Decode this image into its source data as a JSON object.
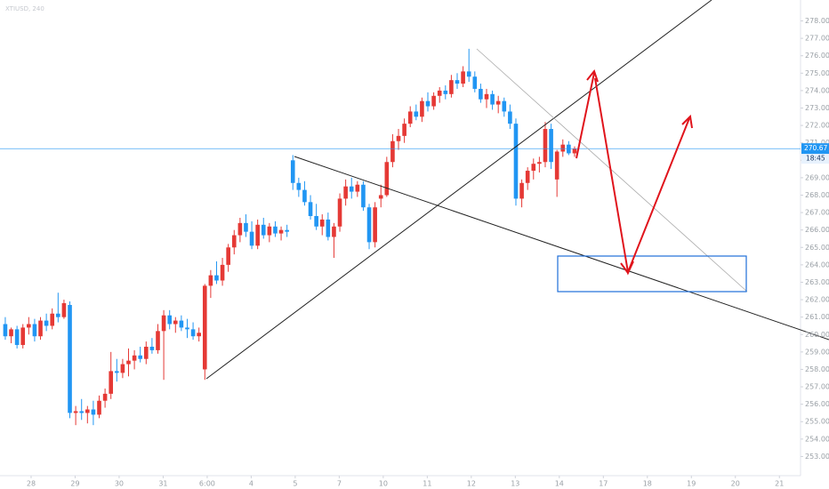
{
  "chart_data": {
    "type": "candlestick",
    "title": "XTIUSD, 240",
    "up_color": "#e53935",
    "down_color": "#2196f3",
    "grid": false,
    "ohlc": [
      [
        260.6,
        261.0,
        259.7,
        259.9
      ],
      [
        259.9,
        260.4,
        259.5,
        260.3
      ],
      [
        260.3,
        260.5,
        259.2,
        259.4
      ],
      [
        259.4,
        260.6,
        259.2,
        260.4
      ],
      [
        260.4,
        261.0,
        260.0,
        260.6
      ],
      [
        260.6,
        260.9,
        259.6,
        259.9
      ],
      [
        259.9,
        261.0,
        259.7,
        260.8
      ],
      [
        260.8,
        261.2,
        260.2,
        260.5
      ],
      [
        260.5,
        261.5,
        260.3,
        261.2
      ],
      [
        261.2,
        262.4,
        260.7,
        261.0
      ],
      [
        261.0,
        262.0,
        260.9,
        261.8
      ],
      [
        261.7,
        261.9,
        255.2,
        255.5
      ],
      [
        255.5,
        255.9,
        254.8,
        255.6
      ],
      [
        255.6,
        256.3,
        255.1,
        255.5
      ],
      [
        255.5,
        255.9,
        254.9,
        255.7
      ],
      [
        255.7,
        256.2,
        254.8,
        255.4
      ],
      [
        255.4,
        256.5,
        255.2,
        256.2
      ],
      [
        256.2,
        256.9,
        255.8,
        256.6
      ],
      [
        256.6,
        259.0,
        256.3,
        257.9
      ],
      [
        257.9,
        258.6,
        257.3,
        257.8
      ],
      [
        257.8,
        258.6,
        257.5,
        258.3
      ],
      [
        258.3,
        259.2,
        257.6,
        258.5
      ],
      [
        258.5,
        259.1,
        258.0,
        258.8
      ],
      [
        258.8,
        259.3,
        258.4,
        258.6
      ],
      [
        258.6,
        259.6,
        258.3,
        259.3
      ],
      [
        259.3,
        259.8,
        258.9,
        259.1
      ],
      [
        259.1,
        260.6,
        258.9,
        260.2
      ],
      [
        260.2,
        261.4,
        257.4,
        261.1
      ],
      [
        261.1,
        261.4,
        260.3,
        260.6
      ],
      [
        260.6,
        261.0,
        260.1,
        260.8
      ],
      [
        260.8,
        261.1,
        260.2,
        260.4
      ],
      [
        260.4,
        260.9,
        259.8,
        260.3
      ],
      [
        260.3,
        260.7,
        259.7,
        259.9
      ],
      [
        259.9,
        260.4,
        259.6,
        260.1
      ],
      [
        258.0,
        262.9,
        257.4,
        262.8
      ],
      [
        262.8,
        263.7,
        262.1,
        263.4
      ],
      [
        263.4,
        264.2,
        262.9,
        263.1
      ],
      [
        263.1,
        264.4,
        262.8,
        264.0
      ],
      [
        264.0,
        265.2,
        263.6,
        265.0
      ],
      [
        265.0,
        266.0,
        264.6,
        265.7
      ],
      [
        265.7,
        266.7,
        265.3,
        266.4
      ],
      [
        266.4,
        266.9,
        265.6,
        265.9
      ],
      [
        265.9,
        266.5,
        264.9,
        265.1
      ],
      [
        265.1,
        266.6,
        264.9,
        266.3
      ],
      [
        266.3,
        266.7,
        265.5,
        265.7
      ],
      [
        265.7,
        266.4,
        265.3,
        266.2
      ],
      [
        266.2,
        266.5,
        265.6,
        265.8
      ],
      [
        265.8,
        266.2,
        265.4,
        266.0
      ],
      [
        266.0,
        266.3,
        265.6,
        265.9
      ],
      [
        270.0,
        270.3,
        268.3,
        268.7
      ],
      [
        268.7,
        269.0,
        267.9,
        268.3
      ],
      [
        268.3,
        268.8,
        267.4,
        267.6
      ],
      [
        267.6,
        268.0,
        266.6,
        266.8
      ],
      [
        266.8,
        267.5,
        266.0,
        266.2
      ],
      [
        266.2,
        266.9,
        265.7,
        266.6
      ],
      [
        266.6,
        267.0,
        265.4,
        265.6
      ],
      [
        265.6,
        266.4,
        264.4,
        266.2
      ],
      [
        266.2,
        268.1,
        265.9,
        267.8
      ],
      [
        267.8,
        268.9,
        267.4,
        268.5
      ],
      [
        268.5,
        269.0,
        267.8,
        268.2
      ],
      [
        268.2,
        268.8,
        267.9,
        268.6
      ],
      [
        268.6,
        268.8,
        267.1,
        267.3
      ],
      [
        267.3,
        267.5,
        264.9,
        265.3
      ],
      [
        265.3,
        267.6,
        265.0,
        267.3
      ],
      [
        267.8,
        268.6,
        267.3,
        268.0
      ],
      [
        268.0,
        270.2,
        267.9,
        269.9
      ],
      [
        269.9,
        271.5,
        269.6,
        271.1
      ],
      [
        271.1,
        271.8,
        270.6,
        271.4
      ],
      [
        271.4,
        272.4,
        271.0,
        272.1
      ],
      [
        272.1,
        273.1,
        271.9,
        272.8
      ],
      [
        272.8,
        273.2,
        272.3,
        272.5
      ],
      [
        272.5,
        273.6,
        272.2,
        273.4
      ],
      [
        273.4,
        273.9,
        272.8,
        273.1
      ],
      [
        273.1,
        273.9,
        272.9,
        273.7
      ],
      [
        273.7,
        274.2,
        273.3,
        274.0
      ],
      [
        274.0,
        274.3,
        273.5,
        273.8
      ],
      [
        273.8,
        274.9,
        273.6,
        274.6
      ],
      [
        274.6,
        275.0,
        274.1,
        274.4
      ],
      [
        274.4,
        275.4,
        274.2,
        275.1
      ],
      [
        275.1,
        276.4,
        274.5,
        274.8
      ],
      [
        274.8,
        275.1,
        273.9,
        274.1
      ],
      [
        274.1,
        274.4,
        273.3,
        273.5
      ],
      [
        273.5,
        274.1,
        273.0,
        273.8
      ],
      [
        273.8,
        274.0,
        272.9,
        273.2
      ],
      [
        273.2,
        273.7,
        272.7,
        273.4
      ],
      [
        273.4,
        273.6,
        272.5,
        272.8
      ],
      [
        272.8,
        273.2,
        271.8,
        272.1
      ],
      [
        272.1,
        272.4,
        267.4,
        267.8
      ],
      [
        267.8,
        268.9,
        267.3,
        268.7
      ],
      [
        268.7,
        269.6,
        268.3,
        269.4
      ],
      [
        269.4,
        270.1,
        268.9,
        269.8
      ],
      [
        269.8,
        270.2,
        269.3,
        269.9
      ],
      [
        269.9,
        272.2,
        269.6,
        271.8
      ],
      [
        271.8,
        272.1,
        269.5,
        269.9
      ],
      [
        268.9,
        270.6,
        267.9,
        270.5
      ],
      [
        270.5,
        271.2,
        270.2,
        270.9
      ],
      [
        270.9,
        271.1,
        270.3,
        270.4
      ],
      [
        270.4,
        270.8,
        270.2,
        270.67
      ]
    ],
    "xlim": [
      -0.9,
      135.5
    ],
    "xticks": [
      {
        "value": 4.4,
        "label": "28"
      },
      {
        "value": 11.9,
        "label": "29"
      },
      {
        "value": 19.4,
        "label": "30"
      },
      {
        "value": 26.9,
        "label": "31"
      },
      {
        "value": 34.4,
        "label": "6:00"
      },
      {
        "value": 41.9,
        "label": "4"
      },
      {
        "value": 49.4,
        "label": "5"
      },
      {
        "value": 56.9,
        "label": "7"
      },
      {
        "value": 64.4,
        "label": "10"
      },
      {
        "value": 71.9,
        "label": "11"
      },
      {
        "value": 79.4,
        "label": "12"
      },
      {
        "value": 86.9,
        "label": "13"
      },
      {
        "value": 94.4,
        "label": "14"
      },
      {
        "value": 101.9,
        "label": "17"
      },
      {
        "value": 109.4,
        "label": "18"
      },
      {
        "value": 116.9,
        "label": "19"
      },
      {
        "value": 124.4,
        "label": "20"
      },
      {
        "value": 131.9,
        "label": "21"
      }
    ],
    "ylim": [
      251.9,
      279.2
    ],
    "yticks": [
      {
        "value": 253,
        "label": "253.00"
      },
      {
        "value": 254,
        "label": "254.00"
      },
      {
        "value": 255,
        "label": "255.00"
      },
      {
        "value": 256,
        "label": "256.00"
      },
      {
        "value": 257,
        "label": "257.00"
      },
      {
        "value": 258,
        "label": "258.00"
      },
      {
        "value": 259,
        "label": "259.00"
      },
      {
        "value": 260,
        "label": "260.00"
      },
      {
        "value": 261,
        "label": "261.00"
      },
      {
        "value": 262,
        "label": "262.00"
      },
      {
        "value": 263,
        "label": "263.00"
      },
      {
        "value": 264,
        "label": "264.00"
      },
      {
        "value": 265,
        "label": "265.00"
      },
      {
        "value": 266,
        "label": "266.00"
      },
      {
        "value": 267,
        "label": "267.00"
      },
      {
        "value": 268,
        "label": "268.00"
      },
      {
        "value": 269,
        "label": "269.00"
      },
      {
        "value": 270,
        "label": "270.00"
      },
      {
        "value": 271,
        "label": "271.00"
      },
      {
        "value": 272,
        "label": "272.00"
      },
      {
        "value": 273,
        "label": "273.00"
      },
      {
        "value": 274,
        "label": "274.00"
      },
      {
        "value": 275,
        "label": "275.00"
      },
      {
        "value": 276,
        "label": "276.00"
      },
      {
        "value": 277,
        "label": "277.00"
      },
      {
        "value": 278,
        "label": "278.00"
      }
    ],
    "last_price": 270.67,
    "countdown": "18:45"
  }
}
